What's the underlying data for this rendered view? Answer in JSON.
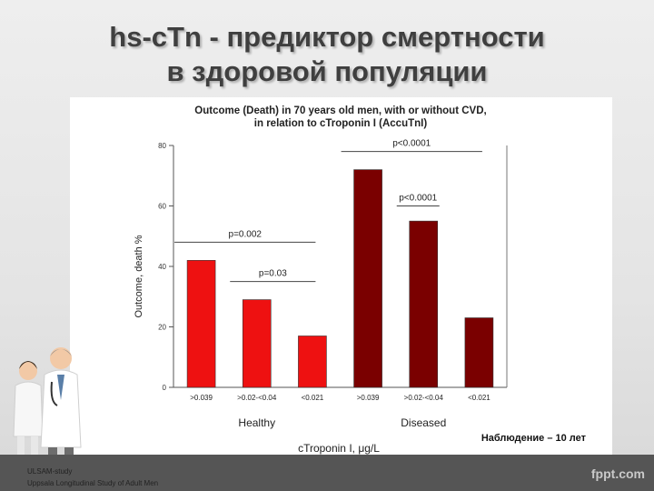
{
  "slide": {
    "title_line1": "hs-cTn - предиктор смертности",
    "title_line2": "в здоровой популяции",
    "footnote_line1": "ULSAM-study",
    "footnote_line2": "Uppsala Longitudinal Study of Adult Men",
    "watermark": "fppt.com"
  },
  "chart_data": {
    "type": "bar",
    "title_line1": "Outcome (Death) in 70 years old men, with or without CVD,",
    "title_line2": "in relation to cTroponin I (AccuTnI)",
    "ylabel": "Outcome, death %",
    "xlabel": "cTroponin I, μg/L",
    "ylim": [
      0,
      80
    ],
    "yticks": [
      0,
      20,
      40,
      60,
      80
    ],
    "categories": [
      ">0.039",
      ">0.02-<0.04",
      "<0.021",
      ">0.039",
      ">0.02-<0.04",
      "<0.021"
    ],
    "values": [
      42,
      29,
      17,
      72,
      55,
      23
    ],
    "groups": [
      {
        "label": "Healthy",
        "indices": [
          0,
          1,
          2
        ],
        "color": "#ee1111"
      },
      {
        "label": "Diseased",
        "indices": [
          3,
          4,
          5
        ],
        "color": "#7a0000"
      }
    ],
    "annotations": [
      {
        "text": "p=0.002",
        "from": 0,
        "to": 2,
        "y": 48
      },
      {
        "text": "p=0.03",
        "from": 1,
        "to": 2,
        "y": 35
      },
      {
        "text": "p<0.0001",
        "from": 3,
        "to": 5,
        "y": 78
      },
      {
        "text": "p<0.0001",
        "from": 4,
        "to": 4,
        "y": 60
      }
    ],
    "note": "Наблюдение – 10 лет"
  }
}
